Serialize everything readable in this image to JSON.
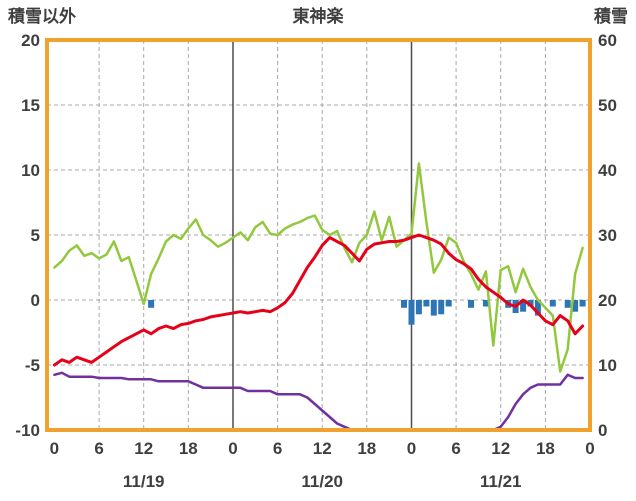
{
  "chart_data": {
    "type": "line",
    "title": "東神楽",
    "left_axis": {
      "label": "積雪以外",
      "min": -10,
      "max": 20,
      "ticks": [
        20,
        15,
        10,
        5,
        0,
        -5,
        -10
      ]
    },
    "right_axis": {
      "label": "積雪",
      "min": 0,
      "max": 60,
      "ticks": [
        60,
        50,
        40,
        30,
        20,
        10,
        0
      ]
    },
    "x_axis": {
      "unit": "hour",
      "tick_interval": 6,
      "tick_labels": [
        "0",
        "6",
        "12",
        "18",
        "0",
        "6",
        "12",
        "18",
        "0",
        "6",
        "12",
        "18",
        "0"
      ],
      "date_labels": [
        "11/19",
        "11/20",
        "11/21"
      ],
      "day_boundaries_hours": [
        24,
        48
      ]
    },
    "colors": {
      "frame": "#f0a12e",
      "grid": "#a8a8a8",
      "day_line": "#4d4d4d",
      "text": "#3f3f3f",
      "red_line": "#e60019",
      "green_line": "#92c83e",
      "purple_line": "#7130a0",
      "blue_bars": "#2e75b6"
    },
    "series": [
      {
        "name": "blue-bars",
        "axis": "left",
        "type": "bar",
        "color": "#2e75b6",
        "values": [
          0,
          0,
          0,
          0,
          0,
          0,
          0,
          0,
          0,
          0,
          0,
          0,
          0,
          0.6,
          0,
          0,
          0,
          0,
          0,
          0,
          0,
          0,
          0,
          0,
          0,
          0,
          0,
          0,
          0,
          0,
          0,
          0,
          0,
          0,
          0,
          0,
          0,
          0,
          0,
          0,
          0,
          0,
          0,
          0,
          0,
          0,
          0,
          0.6,
          1.9,
          1.1,
          0.5,
          1.2,
          1.1,
          0.5,
          0,
          0,
          0.6,
          0,
          0.5,
          0,
          0,
          0.6,
          1.0,
          0.9,
          0.5,
          1.2,
          0,
          0.5,
          0,
          0.6,
          0.9,
          0.5
        ]
      },
      {
        "name": "green-line",
        "axis": "left",
        "type": "line",
        "color": "#92c83e",
        "width": 2.5,
        "values": [
          2.5,
          3.0,
          3.8,
          4.2,
          3.4,
          3.6,
          3.2,
          3.5,
          4.5,
          3.0,
          3.3,
          1.5,
          -0.3,
          2.0,
          3.2,
          4.5,
          5.0,
          4.7,
          5.5,
          6.2,
          5.0,
          4.6,
          4.1,
          4.4,
          4.8,
          5.2,
          4.6,
          5.6,
          6.0,
          5.1,
          5.0,
          5.5,
          5.8,
          6.0,
          6.3,
          6.5,
          5.4,
          5.0,
          5.3,
          4.0,
          2.9,
          4.4,
          5.0,
          6.8,
          4.6,
          6.4,
          4.1,
          4.6,
          5.1,
          10.5,
          6.0,
          2.1,
          3.1,
          4.8,
          4.4,
          3.0,
          2.0,
          0.8,
          2.2,
          -3.5,
          2.3,
          2.6,
          0.6,
          2.4,
          1.0,
          0.0,
          -0.6,
          -1.2,
          -5.5,
          -3.8,
          2.0,
          4.0
        ]
      },
      {
        "name": "snow-depth-line",
        "axis": "right",
        "type": "line",
        "color": "#7130a0",
        "width": 2.5,
        "values": [
          8.5,
          8.8,
          8.2,
          8.2,
          8.2,
          8.2,
          8.0,
          8.0,
          8.0,
          8.0,
          7.8,
          7.8,
          7.8,
          7.8,
          7.5,
          7.5,
          7.5,
          7.5,
          7.5,
          7.0,
          6.5,
          6.5,
          6.5,
          6.5,
          6.5,
          6.5,
          6.0,
          6.0,
          6.0,
          6.0,
          5.5,
          5.5,
          5.5,
          5.5,
          5.0,
          4.0,
          3.0,
          2.0,
          1.0,
          0.5,
          0,
          0,
          0,
          0,
          0,
          0,
          0,
          0,
          0,
          0,
          0,
          0,
          0,
          0,
          0,
          0,
          0,
          0,
          0,
          0,
          0.5,
          2.0,
          4.0,
          5.5,
          6.5,
          7.0,
          7.0,
          7.0,
          7.0,
          8.5,
          8.0,
          8.0
        ]
      },
      {
        "name": "red-line",
        "axis": "left",
        "type": "line",
        "color": "#e60019",
        "width": 3,
        "values": [
          -5.0,
          -4.6,
          -4.8,
          -4.4,
          -4.6,
          -4.8,
          -4.4,
          -4.0,
          -3.6,
          -3.2,
          -2.9,
          -2.6,
          -2.3,
          -2.6,
          -2.2,
          -2.0,
          -2.2,
          -1.9,
          -1.8,
          -1.6,
          -1.5,
          -1.3,
          -1.2,
          -1.1,
          -1.0,
          -0.9,
          -1.0,
          -0.9,
          -0.8,
          -0.9,
          -0.6,
          -0.2,
          0.5,
          1.5,
          2.5,
          3.3,
          4.2,
          4.8,
          4.5,
          4.2,
          3.6,
          3.0,
          3.9,
          4.3,
          4.4,
          4.5,
          4.5,
          4.6,
          4.8,
          5.0,
          4.8,
          4.6,
          4.3,
          3.6,
          3.1,
          2.8,
          2.4,
          1.6,
          1.0,
          0.6,
          0.2,
          -0.3,
          -0.5,
          0.0,
          -0.4,
          -1.0,
          -1.6,
          -1.9,
          -1.2,
          -1.6,
          -2.6,
          -2.0
        ]
      }
    ]
  }
}
